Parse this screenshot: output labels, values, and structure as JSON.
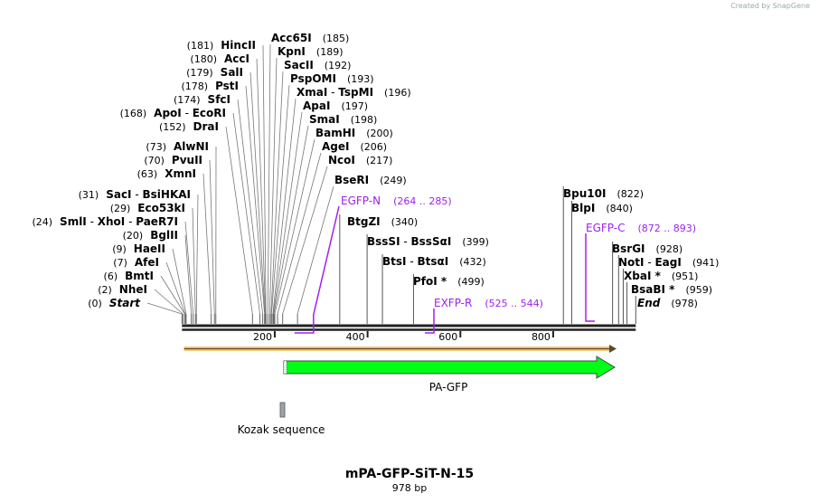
{
  "credit": "Created by SnapGene",
  "title": "mPA-GFP-SiT-N-15",
  "length_label": "978 bp",
  "sequence_length": 978,
  "ruler_ticks": [
    200,
    400,
    600,
    800
  ],
  "sites": [
    {
      "names": [
        "Start"
      ],
      "pos": 0,
      "italic": true
    },
    {
      "names": [
        "NheI"
      ],
      "pos": 2
    },
    {
      "names": [
        "BmtI"
      ],
      "pos": 6
    },
    {
      "names": [
        "AfeI"
      ],
      "pos": 7
    },
    {
      "names": [
        "HaeII"
      ],
      "pos": 9
    },
    {
      "names": [
        "BglII"
      ],
      "pos": 20
    },
    {
      "names": [
        "SmlI",
        "XhoI",
        "PaeR7I"
      ],
      "pos": 24
    },
    {
      "names": [
        "Eco53kI"
      ],
      "pos": 29
    },
    {
      "names": [
        "SacI",
        "BsiHKAI"
      ],
      "pos": 31
    },
    {
      "names": [
        "XmnI"
      ],
      "pos": 63
    },
    {
      "names": [
        "PvuII"
      ],
      "pos": 70
    },
    {
      "names": [
        "AlwNI"
      ],
      "pos": 73
    },
    {
      "names": [
        "DraI"
      ],
      "pos": 152
    },
    {
      "names": [
        "ApoI",
        "EcoRI"
      ],
      "pos": 168
    },
    {
      "names": [
        "SfcI"
      ],
      "pos": 174
    },
    {
      "names": [
        "PstI"
      ],
      "pos": 178
    },
    {
      "names": [
        "SalI"
      ],
      "pos": 179
    },
    {
      "names": [
        "AccI"
      ],
      "pos": 180
    },
    {
      "names": [
        "HincII"
      ],
      "pos": 181
    },
    {
      "names": [
        "Acc65I"
      ],
      "pos": 185
    },
    {
      "names": [
        "KpnI"
      ],
      "pos": 189
    },
    {
      "names": [
        "SacII"
      ],
      "pos": 192
    },
    {
      "names": [
        "PspOMI"
      ],
      "pos": 193
    },
    {
      "names": [
        "XmaI",
        "TspMI"
      ],
      "pos": 196
    },
    {
      "names": [
        "ApaI"
      ],
      "pos": 197
    },
    {
      "names": [
        "SmaI"
      ],
      "pos": 198
    },
    {
      "names": [
        "BamHI"
      ],
      "pos": 200
    },
    {
      "names": [
        "AgeI"
      ],
      "pos": 206
    },
    {
      "names": [
        "NcoI"
      ],
      "pos": 217
    },
    {
      "names": [
        "BseRI"
      ],
      "pos": 249
    },
    {
      "names": [
        "BtgZI"
      ],
      "pos": 340
    },
    {
      "names": [
        "BssSI",
        "BssSαI"
      ],
      "pos": 399
    },
    {
      "names": [
        "BtsI",
        "BtsαI"
      ],
      "pos": 432
    },
    {
      "names": [
        "PfoI *"
      ],
      "pos": 499
    },
    {
      "names": [
        "Bpu10I"
      ],
      "pos": 822
    },
    {
      "names": [
        "BlpI"
      ],
      "pos": 840
    },
    {
      "names": [
        "BsrGI"
      ],
      "pos": 928
    },
    {
      "names": [
        "NotI",
        "EagI"
      ],
      "pos": 941
    },
    {
      "names": [
        "XbaI *"
      ],
      "pos": 951
    },
    {
      "names": [
        "BsaBI *"
      ],
      "pos": 959
    },
    {
      "names": [
        "End"
      ],
      "pos": 978,
      "italic": true
    }
  ],
  "primers": [
    {
      "name": "EGFP-N",
      "range": "(264 .. 285)",
      "start": 264,
      "end": 285
    },
    {
      "name": "EXFP-R",
      "range": "(525 .. 544)",
      "start": 525,
      "end": 544
    },
    {
      "name": "EGFP-C",
      "range": "(872 .. 893)",
      "start": 872,
      "end": 893
    }
  ],
  "features": [
    {
      "name": "PA-GFP",
      "start": 222,
      "end": 941,
      "color": "#00ff17"
    },
    {
      "name": "Kozak sequence",
      "start": 213,
      "end": 222,
      "color": "#9ba3ad"
    }
  ],
  "orf_color": "#f6c97a"
}
